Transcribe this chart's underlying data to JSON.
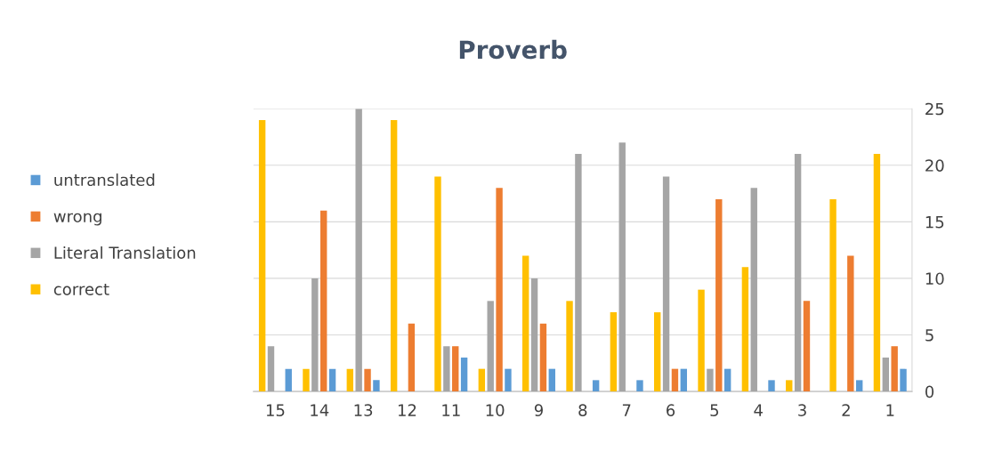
{
  "chart_data": {
    "type": "bar",
    "title": "Proverb",
    "categories": [
      "15",
      "14",
      "13",
      "12",
      "11",
      "10",
      "9",
      "8",
      "7",
      "6",
      "5",
      "4",
      "3",
      "2",
      "1"
    ],
    "series": [
      {
        "name": "correct",
        "color": "#ffc000",
        "values": [
          24,
          2,
          2,
          24,
          19,
          2,
          12,
          8,
          7,
          7,
          9,
          11,
          1,
          17,
          21
        ]
      },
      {
        "name": "Literal Translation",
        "color": "#a5a5a5",
        "values": [
          4,
          10,
          25,
          0,
          4,
          8,
          10,
          21,
          22,
          19,
          2,
          18,
          21,
          0,
          3
        ]
      },
      {
        "name": "wrong",
        "color": "#ed7d31",
        "values": [
          0,
          16,
          2,
          6,
          4,
          18,
          6,
          0,
          0,
          2,
          17,
          0,
          8,
          12,
          4
        ]
      },
      {
        "name": "untranslated",
        "color": "#5b9bd5",
        "values": [
          2,
          2,
          1,
          0,
          3,
          2,
          2,
          1,
          1,
          2,
          2,
          1,
          0,
          1,
          2
        ]
      }
    ],
    "ylim": [
      0,
      25
    ],
    "yticks": [
      0,
      5,
      10,
      15,
      20,
      25
    ],
    "grid": "y",
    "legend": "left"
  }
}
